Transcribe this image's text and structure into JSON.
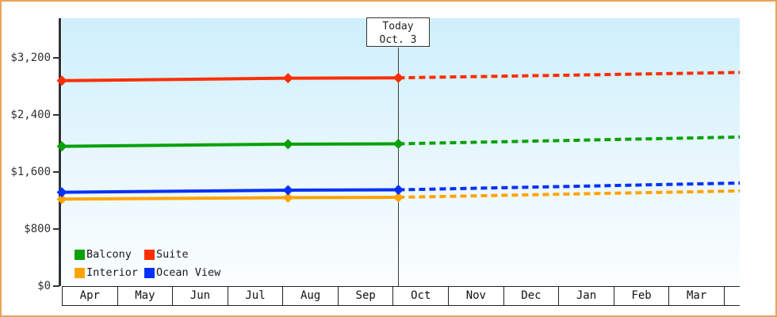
{
  "chart": {
    "today_flag": {
      "line1": "Today",
      "line2": "Oct. 3"
    },
    "colors": {
      "balcony": "#09a109",
      "suite": "#fa2e05",
      "interior": "#ffa303",
      "ocean_view": "#0531f5",
      "axis": "#2e3436",
      "page_border": "#e9a558"
    }
  },
  "chart_data": {
    "type": "line",
    "title": "",
    "xlabel": "",
    "ylabel": "",
    "x_unit": "months_from_apr_1",
    "x_range": [
      0,
      12.29
    ],
    "ylim": [
      0,
      3755
    ],
    "grid": false,
    "legend_position": "bottom-left",
    "x_tick_labels": [
      "Apr",
      "May",
      "Jun",
      "Jul",
      "Aug",
      "Sep",
      "Oct",
      "Nov",
      "Dec",
      "Jan",
      "Feb",
      "Mar"
    ],
    "y_ticks": [
      {
        "value": 0,
        "label": "$0"
      },
      {
        "value": 800,
        "label": "$800"
      },
      {
        "value": 1600,
        "label": "$1,600"
      },
      {
        "value": 2400,
        "label": "$2,400"
      },
      {
        "value": 3200,
        "label": "$3,200"
      }
    ],
    "annotations": [
      {
        "type": "vline",
        "x": 6.11,
        "label": "Today Oct. 3"
      }
    ],
    "series": [
      {
        "name": "Suite",
        "color": "#fa2e05",
        "solid_points": [
          [
            0,
            2880
          ],
          [
            4.1,
            2915
          ],
          [
            6.1,
            2920
          ]
        ],
        "dashed_points": [
          [
            6.1,
            2920
          ],
          [
            12.29,
            2995
          ]
        ]
      },
      {
        "name": "Balcony",
        "color": "#09a109",
        "solid_points": [
          [
            0,
            1960
          ],
          [
            4.1,
            1990
          ],
          [
            6.1,
            1995
          ]
        ],
        "dashed_points": [
          [
            6.1,
            1995
          ],
          [
            12.29,
            2090
          ]
        ]
      },
      {
        "name": "Interior",
        "color": "#ffa303",
        "solid_points": [
          [
            0,
            1220
          ],
          [
            4.1,
            1240
          ],
          [
            6.1,
            1245
          ]
        ],
        "dashed_points": [
          [
            6.1,
            1245
          ],
          [
            12.29,
            1335
          ]
        ]
      },
      {
        "name": "Ocean View",
        "color": "#0531f5",
        "solid_points": [
          [
            0,
            1315
          ],
          [
            4.1,
            1345
          ],
          [
            6.1,
            1350
          ]
        ],
        "dashed_points": [
          [
            6.1,
            1350
          ],
          [
            12.29,
            1445
          ]
        ]
      }
    ],
    "legend": [
      {
        "label": "Balcony",
        "color": "#09a109"
      },
      {
        "label": "Suite",
        "color": "#fa2e05"
      },
      {
        "label": "Interior",
        "color": "#ffa303"
      },
      {
        "label": "Ocean View",
        "color": "#0531f5"
      }
    ]
  }
}
